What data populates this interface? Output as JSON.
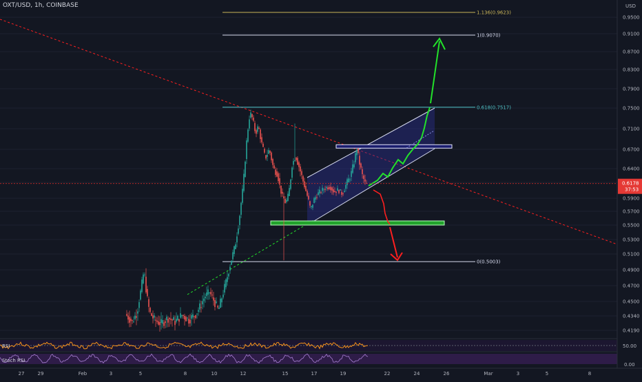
{
  "header": {
    "symbol": "OXT/USD, 1h, COINBASE"
  },
  "price_scale": {
    "currency": "USD",
    "last_price": "0.6178",
    "countdown": "37:53"
  },
  "indicators": {
    "rsi_label": "RSI",
    "stoch_label": "Stoch RSI",
    "rsi_tick": "50.00",
    "stoch_tick": "0.00"
  },
  "colors": {
    "background": "#131722",
    "up": "#26a69a",
    "down": "#ef5350",
    "text": "#b2b5be",
    "fib_top": "#c9b458",
    "fib_mid": "#4fc3c7",
    "green_path": "#22e22a",
    "red_path": "#ff1f1f",
    "green_zone": "#22a32c",
    "channel": "#d8dcf0",
    "last_price_bg": "#e53935",
    "rsi_line": "#f7931a",
    "stoch_line": "#a87fd3",
    "stoch_bg": "#3b1f59"
  },
  "chart_data": {
    "type": "candlestick",
    "y_axis": {
      "range": [
        0.41,
        0.98
      ],
      "ticks": [
        0.419,
        0.434,
        0.45,
        0.47,
        0.49,
        0.51,
        0.53,
        0.55,
        0.57,
        0.59,
        0.62,
        0.64,
        0.67,
        0.71,
        0.75,
        0.79,
        0.83,
        0.87,
        0.91,
        0.95
      ]
    },
    "x_axis": {
      "ticks": [
        "27",
        "29",
        "Feb",
        "3",
        "5",
        "8",
        "10",
        "12",
        "15",
        "17",
        "19",
        "22",
        "24",
        "26",
        "Mar",
        "3",
        "5",
        "8"
      ]
    },
    "fib_levels": [
      {
        "label": "1.136(0.9623)",
        "value": 0.9623
      },
      {
        "label": "1(0.9070)",
        "value": 0.907
      },
      {
        "label": "0.618(0.7517)",
        "value": 0.7517
      },
      {
        "label": "0(0.5003)",
        "value": 0.5003
      }
    ],
    "resistance_zone": 0.675,
    "support_zone": 0.553,
    "last_price": 0.6178,
    "rsi_level": 50,
    "stoch_level": 0
  }
}
